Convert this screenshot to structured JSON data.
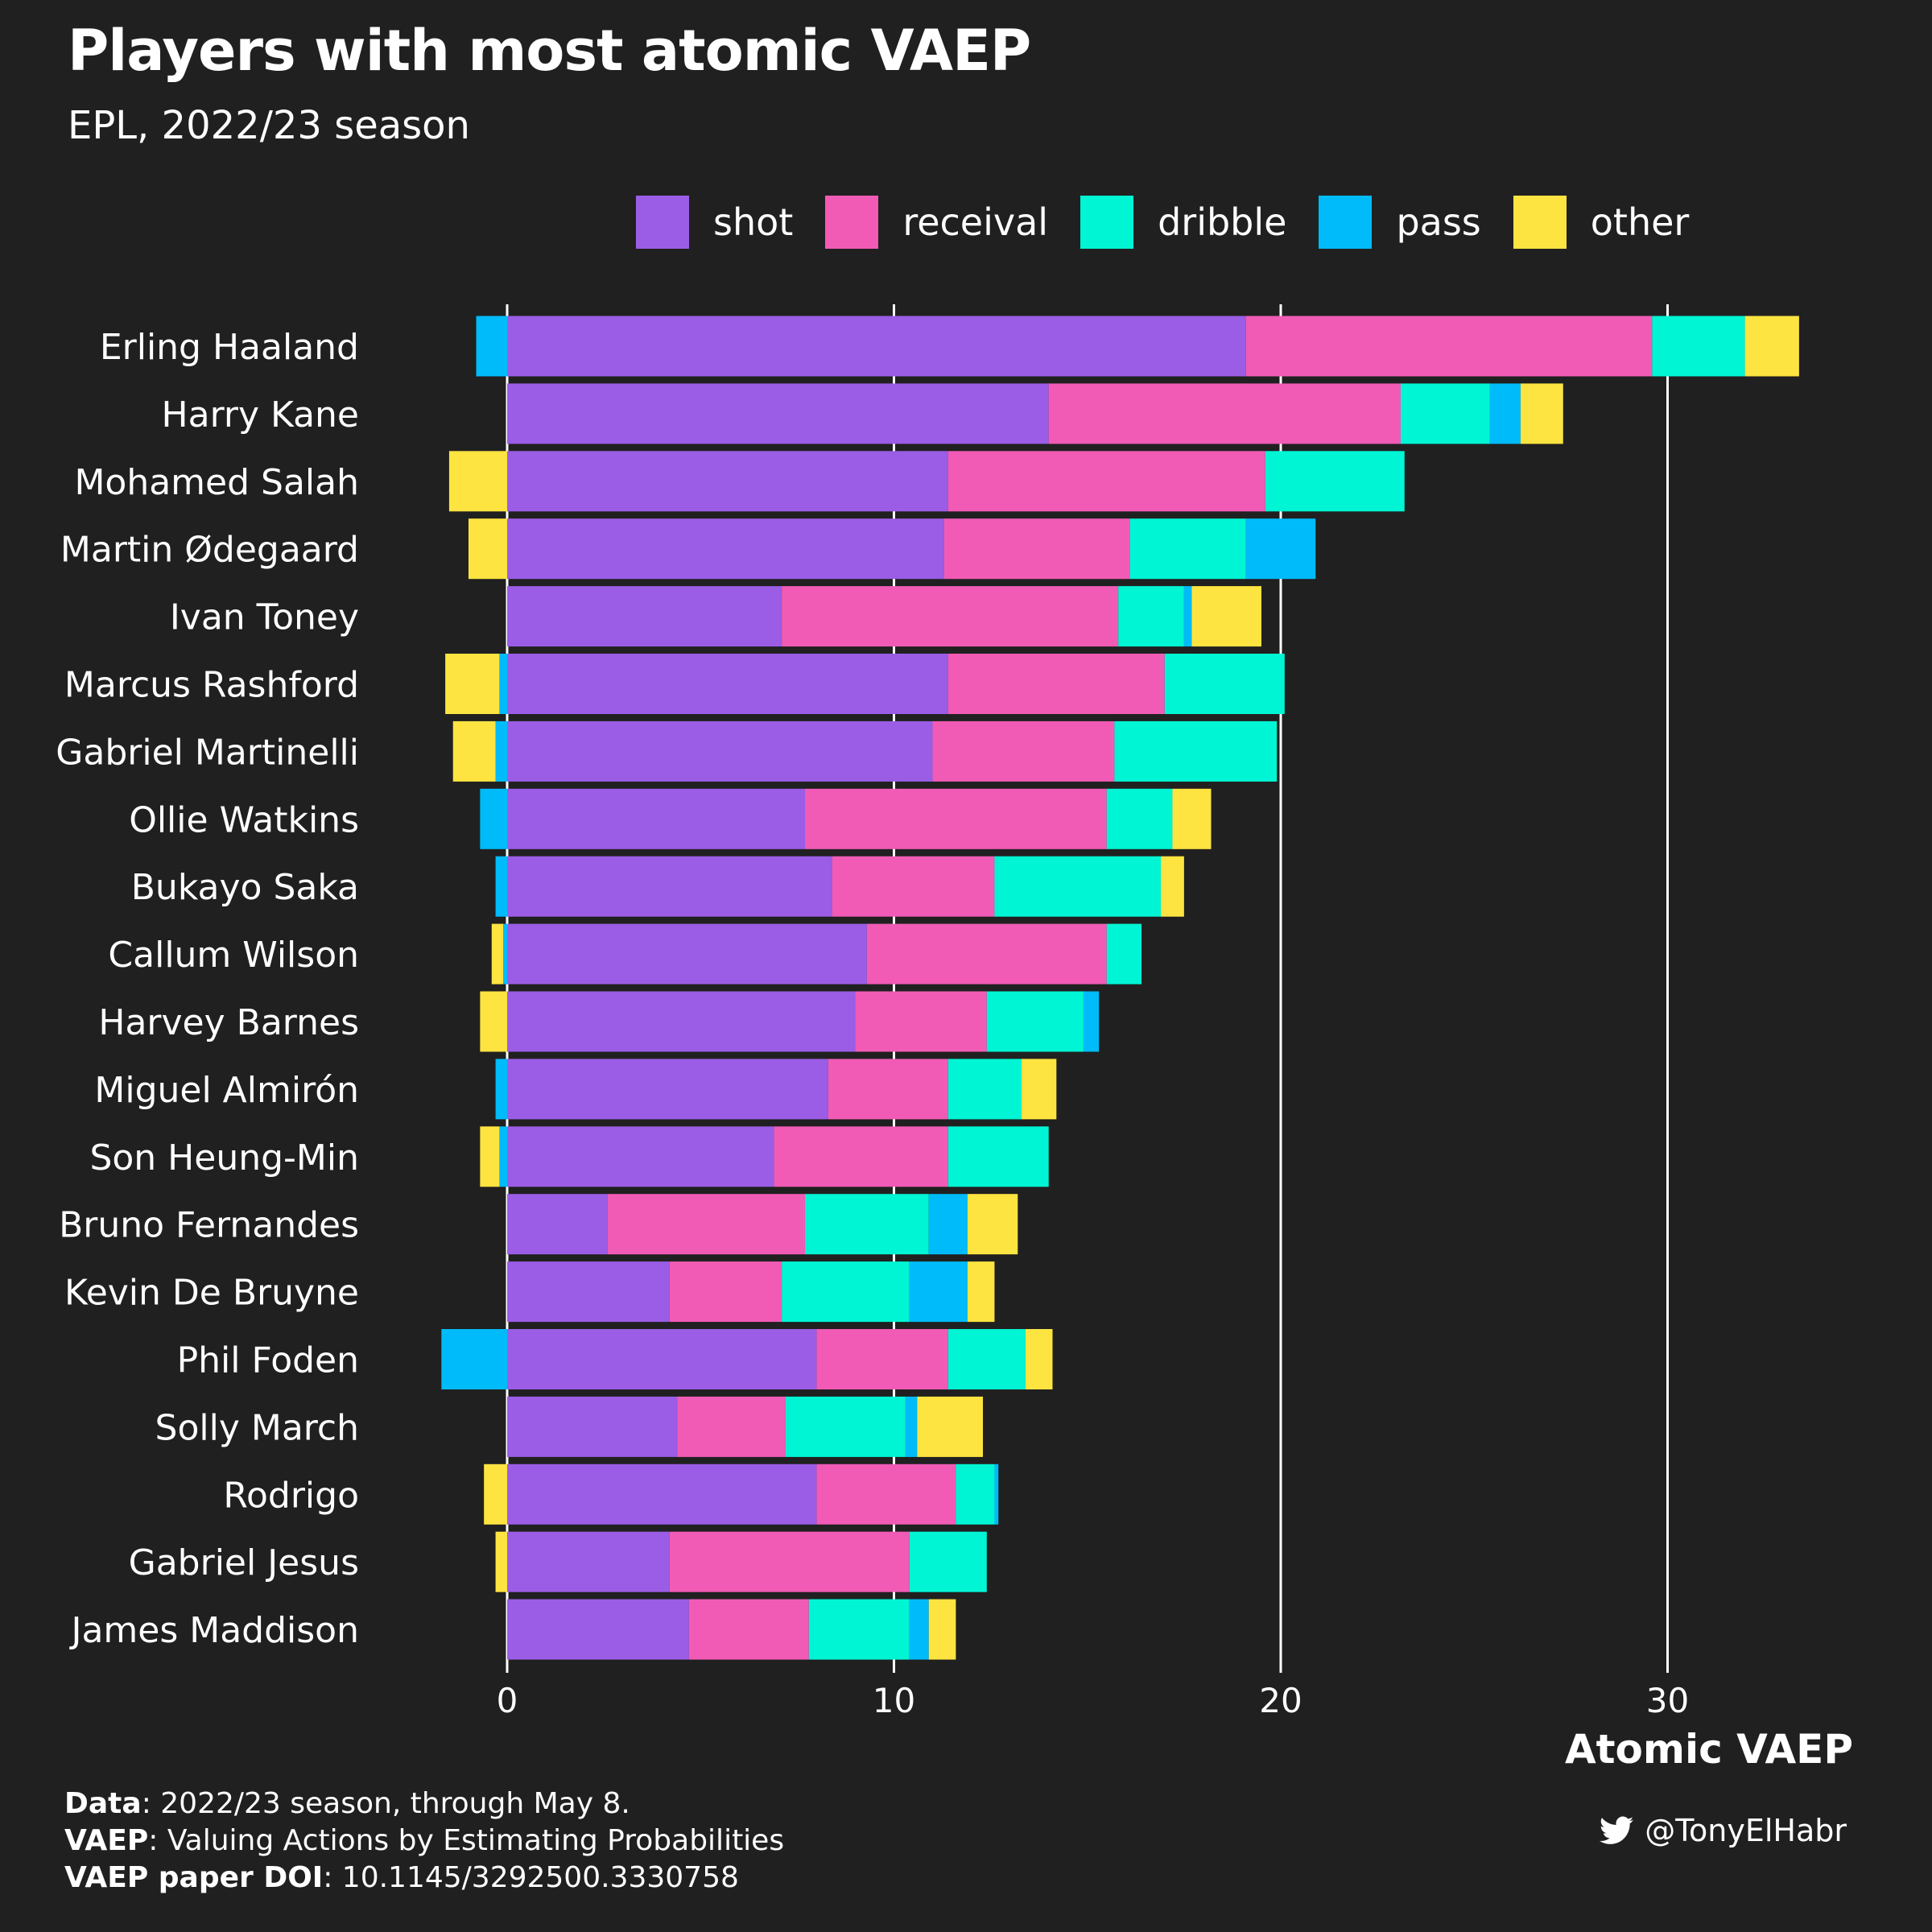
{
  "title": "Players with most atomic VAEP",
  "subtitle": "EPL, 2022/23 season",
  "legend": [
    {
      "label": "shot",
      "color": "#9b5de5"
    },
    {
      "label": "receival",
      "color": "#f15bb5"
    },
    {
      "label": "dribble",
      "color": "#00f5d4"
    },
    {
      "label": "pass",
      "color": "#00bbf9"
    },
    {
      "label": "other",
      "color": "#fee440"
    }
  ],
  "caption": {
    "line1_bold": "Data",
    "line1_text": ": 2022/23 season, through May 8.",
    "line2_bold": "VAEP",
    "line2_text": ": Valuing Actions by Estimating Probabilities",
    "line3_bold": "VAEP paper DOI",
    "line3_text": ": 10.1145/3292500.3330758"
  },
  "credit": {
    "handle": "@TonyElHabr",
    "icon": "twitter-icon"
  },
  "chart_data": {
    "type": "bar",
    "orientation": "horizontal",
    "stacked": true,
    "xlabel": "Atomic VAEP",
    "xlim": [
      -2,
      35
    ],
    "xticks": [
      0,
      10,
      20,
      30
    ],
    "grid": "vertical",
    "legend_position": "top",
    "categories": [
      "Erling Haaland",
      "Harry Kane",
      "Mohamed Salah",
      "Martin Ødegaard",
      "Ivan Toney",
      "Marcus Rashford",
      "Gabriel Martinelli",
      "Ollie Watkins",
      "Bukayo Saka",
      "Callum Wilson",
      "Harvey Barnes",
      "Miguel Almirón",
      "Son Heung-Min",
      "Bruno Fernandes",
      "Kevin De Bruyne",
      "Phil Foden",
      "Solly March",
      "Rodrigo",
      "Gabriel Jesus",
      "James Maddison"
    ],
    "series": [
      {
        "name": "shot",
        "color": "#9b5de5",
        "values": [
          19.1,
          14.0,
          11.4,
          11.3,
          7.1,
          11.4,
          11.0,
          7.7,
          8.4,
          9.3,
          9.0,
          8.3,
          6.9,
          2.6,
          4.2,
          8.0,
          4.4,
          8.0,
          4.2,
          4.7
        ]
      },
      {
        "name": "receival",
        "color": "#f15bb5",
        "values": [
          10.5,
          9.1,
          8.2,
          4.8,
          8.7,
          5.6,
          4.7,
          7.8,
          4.2,
          6.2,
          3.4,
          3.1,
          4.5,
          5.1,
          2.9,
          3.4,
          2.8,
          3.6,
          6.2,
          3.1
        ]
      },
      {
        "name": "dribble",
        "color": "#00f5d4",
        "values": [
          2.4,
          2.3,
          3.6,
          3.0,
          1.7,
          3.1,
          4.2,
          1.7,
          4.3,
          0.9,
          2.5,
          1.9,
          2.6,
          3.2,
          3.3,
          2.0,
          3.1,
          1.0,
          2.0,
          2.6
        ]
      },
      {
        "name": "pass",
        "color": "#00bbf9",
        "values": [
          -0.8,
          0.8,
          0.0,
          1.8,
          0.2,
          -0.2,
          -0.3,
          -0.7,
          -0.3,
          -0.1,
          0.4,
          -0.3,
          -0.2,
          1.0,
          1.5,
          -1.7,
          0.3,
          0.1,
          0.0,
          0.5
        ]
      },
      {
        "name": "other",
        "color": "#fee440",
        "values": [
          1.4,
          1.1,
          -1.5,
          -1.0,
          1.8,
          -1.4,
          -1.1,
          1.0,
          0.6,
          -0.3,
          -0.7,
          0.9,
          -0.5,
          1.3,
          0.7,
          0.7,
          1.7,
          -0.6,
          -0.3,
          0.7
        ]
      }
    ]
  }
}
